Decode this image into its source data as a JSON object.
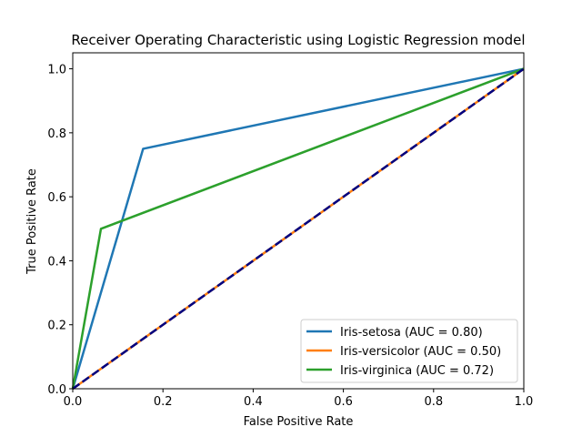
{
  "chart_data": {
    "type": "line",
    "title": "Receiver Operating Characteristic using Logistic Regression model",
    "xlabel": "False Positive Rate",
    "ylabel": "True Positive Rate",
    "xlim": [
      0.0,
      1.0
    ],
    "ylim": [
      0.0,
      1.05
    ],
    "xticks": [
      0.0,
      0.2,
      0.4,
      0.6,
      0.8,
      1.0
    ],
    "yticks": [
      0.0,
      0.2,
      0.4,
      0.6,
      0.8,
      1.0
    ],
    "xtick_labels": [
      "0.0",
      "0.2",
      "0.4",
      "0.6",
      "0.8",
      "1.0"
    ],
    "ytick_labels": [
      "0.0",
      "0.2",
      "0.4",
      "0.6",
      "0.8",
      "1.0"
    ],
    "grid": false,
    "legend_position": "lower-right",
    "series": [
      {
        "name": "Iris-setosa (AUC = 0.80)",
        "color": "#1f77b4",
        "x": [
          0.0,
          0.156,
          1.0
        ],
        "y": [
          0.0,
          0.75,
          1.0
        ]
      },
      {
        "name": "Iris-versicolor (AUC = 0.50)",
        "color": "#ff7f0e",
        "x": [
          0.0,
          1.0
        ],
        "y": [
          0.0,
          1.0
        ]
      },
      {
        "name": "Iris-virginica (AUC = 0.72)",
        "color": "#2ca02c",
        "x": [
          0.0,
          0.0625,
          1.0
        ],
        "y": [
          0.0,
          0.5,
          1.0
        ]
      }
    ],
    "reference_line": {
      "style": "dashed",
      "color": "#000080",
      "x": [
        0.0,
        1.0
      ],
      "y": [
        0.0,
        1.0
      ]
    }
  }
}
